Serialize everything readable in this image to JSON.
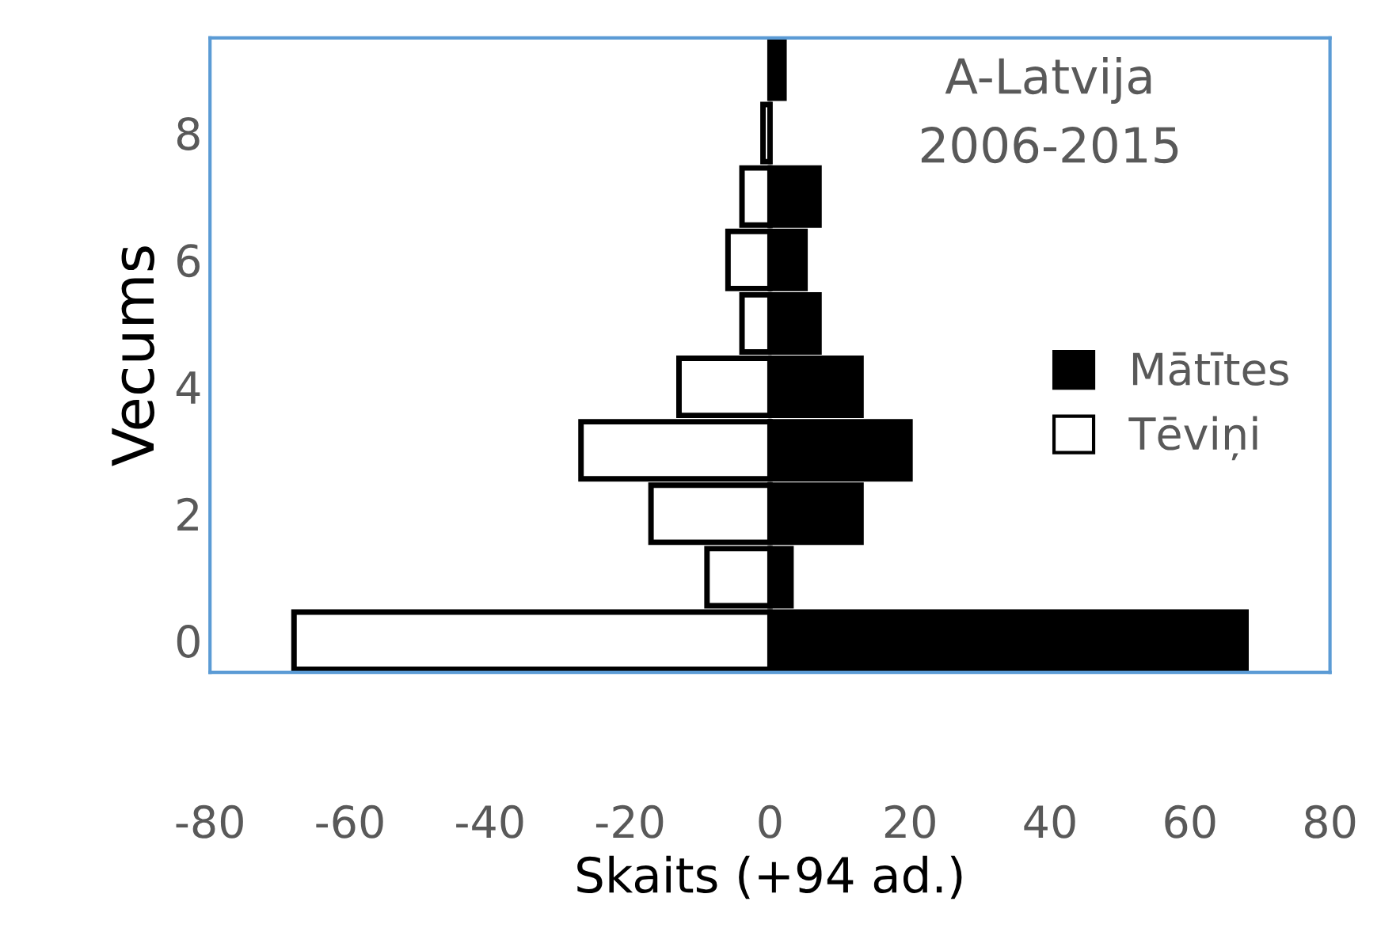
{
  "chart_data": {
    "type": "bar",
    "orientation": "horizontal",
    "stacked": true,
    "ref_lines": [
      {
        "axis": "x",
        "value": 0,
        "color": "#bfbfbf"
      }
    ],
    "title": "A-Latvija\n2006-2015",
    "xlabel": "Skaits (+94 ad.)",
    "ylabel": "Vecums",
    "categories": [
      null,
      "8",
      null,
      "6",
      null,
      "4",
      null,
      "2",
      null,
      "0"
    ],
    "series": [
      {
        "name": "Mātītes",
        "color": "#000000",
        "values": [
          2,
          null,
          7,
          5,
          7,
          13,
          20,
          13,
          3,
          68
        ]
      },
      {
        "name": "Tēviņi",
        "color": "#ffffff",
        "values": [
          null,
          -1,
          -4,
          -6,
          -4,
          -13,
          -27,
          -17,
          -9,
          -68
        ]
      }
    ],
    "xlim": [
      -80,
      80
    ],
    "xticks": [
      -80,
      -60,
      -40,
      -20,
      0,
      20,
      40,
      60,
      80
    ],
    "legend": "right",
    "grid": false
  }
}
